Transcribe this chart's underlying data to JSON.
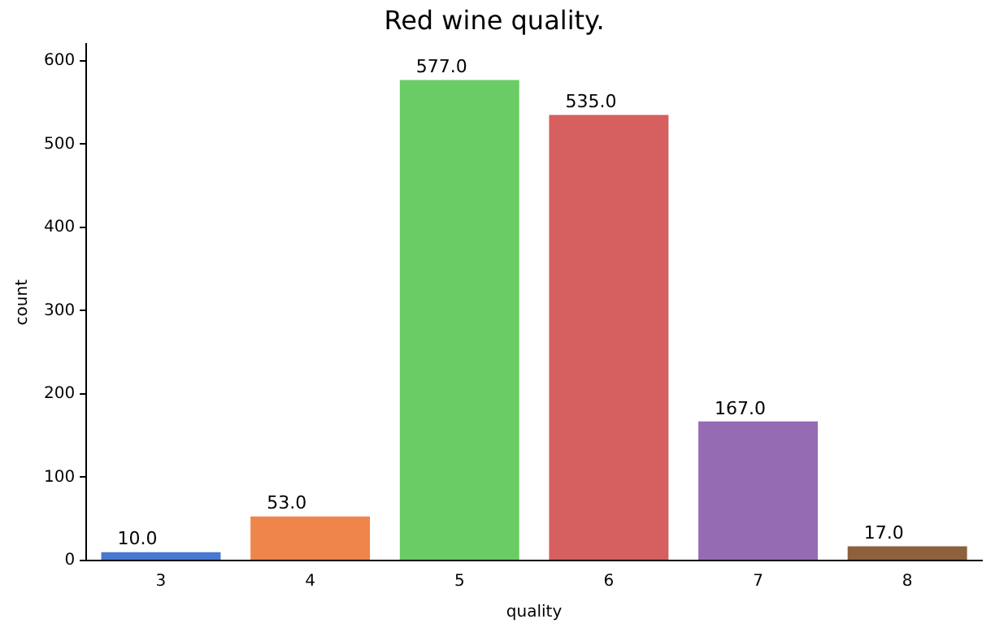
{
  "chart_data": {
    "type": "bar",
    "title": "Red wine quality.",
    "xlabel": "quality",
    "ylabel": "count",
    "categories": [
      "3",
      "4",
      "5",
      "6",
      "7",
      "8"
    ],
    "values": [
      10,
      53,
      577,
      535,
      167,
      17
    ],
    "value_labels": [
      "10.0",
      "53.0",
      "577.0",
      "535.0",
      "167.0",
      "17.0"
    ],
    "colors": [
      "#4878d0",
      "#ee854a",
      "#6acc64",
      "#d65f5f",
      "#956cb4",
      "#8c613c"
    ],
    "ylim": [
      0,
      620
    ],
    "yticks": [
      0,
      100,
      200,
      300,
      400,
      500,
      600
    ],
    "grid": false,
    "legend": false
  }
}
